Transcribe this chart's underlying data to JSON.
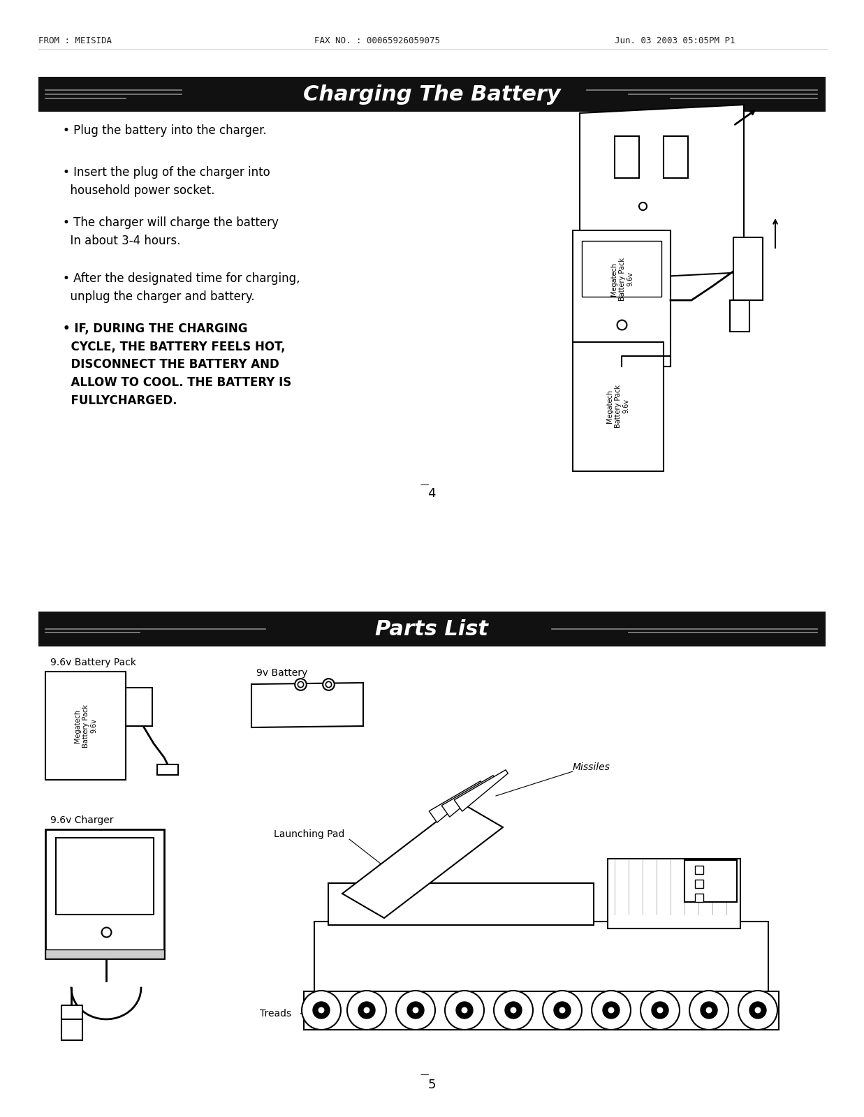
{
  "fax_from": "FROM : MEISIDA",
  "fax_no": "FAX NO. : 00065926059075",
  "fax_date": "Jun. 03 2003 05:05PM P1",
  "page1_title": "Charging The Battery",
  "page1_bullets": [
    [
      "• Plug the battery into the charger.",
      false
    ],
    [
      "• Insert the plug of the charger into\n  household power socket.",
      false
    ],
    [
      "• The charger will charge the battery\n  In about 3-4 hours.",
      false
    ],
    [
      "• After the designated time for charging,\n  unplug the charger and battery.",
      false
    ],
    [
      "• IF, DURING THE CHARGING\n  CYCLE, THE BATTERY FEELS HOT,\n  DISCONNECT THE BATTERY AND\n  ALLOW TO COOL. THE BATTERY IS\n  FULLYCHARGED.",
      true
    ]
  ],
  "page1_num": "4",
  "page2_title": "Parts List",
  "page2_num": "5",
  "bg": "#ffffff",
  "hdr_bg": "#111111",
  "hdr_fg": "#ffffff",
  "fg": "#000000",
  "gray": "#888888"
}
